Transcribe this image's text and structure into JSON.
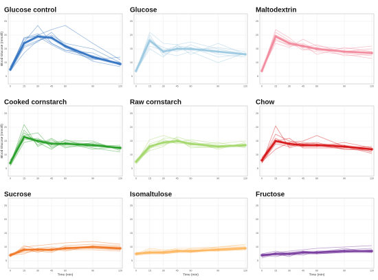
{
  "chart_data": [
    {
      "type": "line",
      "title": "Glucose control",
      "color": "#3575c2",
      "xlabel": "",
      "ylabel": "Blood Glucose (mmol/l)",
      "x": [
        0,
        15,
        30,
        45,
        60,
        90,
        120
      ],
      "xticks": [
        0,
        15,
        30,
        45,
        60,
        90,
        120
      ],
      "yticks": [
        5,
        10,
        15,
        20,
        25
      ],
      "ylim": [
        3,
        27
      ],
      "grid": true,
      "legend": "none",
      "series": [
        {
          "role": "mean",
          "values": [
            7.5,
            17.0,
            19.5,
            19.0,
            16.0,
            12.0,
            9.5
          ]
        },
        {
          "role": "individual",
          "values": [
            8.0,
            18.5,
            20.0,
            22.0,
            23.5,
            17.0,
            11.0
          ]
        },
        {
          "role": "individual",
          "values": [
            7.0,
            13.5,
            18.0,
            20.0,
            17.0,
            15.0,
            10.0
          ]
        },
        {
          "role": "individual",
          "values": [
            8.5,
            17.5,
            23.5,
            17.0,
            14.5,
            13.5,
            9.0
          ]
        },
        {
          "role": "individual",
          "values": [
            7.5,
            19.0,
            19.5,
            16.5,
            14.0,
            11.5,
            10.0
          ]
        },
        {
          "role": "individual",
          "values": [
            7.0,
            15.5,
            17.5,
            21.0,
            16.0,
            10.5,
            8.5
          ]
        },
        {
          "role": "individual",
          "values": [
            8.0,
            19.0,
            20.5,
            17.0,
            14.5,
            12.5,
            9.5
          ]
        },
        {
          "role": "individual",
          "values": [
            7.5,
            16.0,
            18.0,
            19.5,
            15.5,
            11.0,
            12.0
          ]
        }
      ]
    },
    {
      "type": "line",
      "title": "Glucose",
      "color": "#9ecae1",
      "xlabel": "",
      "ylabel": "",
      "x": [
        0,
        15,
        30,
        45,
        60,
        90,
        120
      ],
      "xticks": [
        0,
        15,
        30,
        45,
        60,
        90,
        120
      ],
      "yticks": [
        5,
        10,
        15,
        20,
        25
      ],
      "ylim": [
        3,
        27
      ],
      "grid": true,
      "legend": "none",
      "series": [
        {
          "role": "mean",
          "values": [
            7.0,
            18.0,
            14.0,
            15.0,
            15.0,
            14.0,
            13.0
          ]
        },
        {
          "role": "individual",
          "values": [
            6.5,
            21.0,
            17.0,
            16.5,
            17.5,
            15.0,
            13.0
          ]
        },
        {
          "role": "individual",
          "values": [
            7.5,
            19.0,
            13.5,
            12.5,
            14.0,
            10.0,
            13.5
          ]
        },
        {
          "role": "individual",
          "values": [
            7.0,
            15.0,
            12.0,
            16.5,
            13.0,
            17.0,
            13.0
          ]
        },
        {
          "role": "individual",
          "values": [
            7.5,
            17.5,
            15.5,
            14.0,
            16.5,
            13.0,
            12.0
          ]
        },
        {
          "role": "individual",
          "values": [
            6.5,
            20.0,
            12.5,
            15.5,
            14.5,
            15.5,
            14.0
          ]
        },
        {
          "role": "individual",
          "values": [
            7.0,
            16.0,
            14.5,
            16.0,
            15.5,
            12.0,
            13.0
          ]
        }
      ]
    },
    {
      "type": "line",
      "title": "Maltodextrin",
      "color": "#f28b9e",
      "xlabel": "",
      "ylabel": "",
      "x": [
        0,
        15,
        30,
        45,
        60,
        90,
        120
      ],
      "xticks": [
        0,
        15,
        30,
        45,
        60,
        90,
        120
      ],
      "yticks": [
        5,
        10,
        15,
        20,
        25
      ],
      "ylim": [
        3,
        27
      ],
      "grid": true,
      "legend": "none",
      "series": [
        {
          "role": "mean",
          "values": [
            7.0,
            19.5,
            17.0,
            16.0,
            15.0,
            14.0,
            13.5
          ]
        },
        {
          "role": "individual",
          "values": [
            6.5,
            22.0,
            19.0,
            15.0,
            14.0,
            13.0,
            11.5
          ]
        },
        {
          "role": "individual",
          "values": [
            7.5,
            17.0,
            15.5,
            18.5,
            16.0,
            15.0,
            16.0
          ]
        },
        {
          "role": "individual",
          "values": [
            7.0,
            20.0,
            17.5,
            14.5,
            15.5,
            12.5,
            13.0
          ]
        },
        {
          "role": "individual",
          "values": [
            7.5,
            18.5,
            16.0,
            16.5,
            13.0,
            15.5,
            14.0
          ]
        },
        {
          "role": "individual",
          "values": [
            6.5,
            21.0,
            18.0,
            15.5,
            16.5,
            13.5,
            12.5
          ]
        },
        {
          "role": "individual",
          "values": [
            7.0,
            18.0,
            16.5,
            17.0,
            14.5,
            14.0,
            15.0
          ]
        }
      ]
    },
    {
      "type": "line",
      "title": "Cooked cornstarch",
      "color": "#2ca02c",
      "xlabel": "",
      "ylabel": "Blood Glucose (mmol/l)",
      "x": [
        0,
        15,
        30,
        45,
        60,
        90,
        120
      ],
      "xticks": [
        0,
        15,
        30,
        45,
        60,
        90,
        120
      ],
      "yticks": [
        5,
        10,
        15,
        20,
        25
      ],
      "ylim": [
        3,
        27
      ],
      "grid": true,
      "legend": "none",
      "series": [
        {
          "role": "mean",
          "values": [
            7.0,
            16.5,
            15.0,
            14.0,
            14.0,
            13.5,
            12.5
          ]
        },
        {
          "role": "individual",
          "values": [
            6.5,
            21.0,
            13.0,
            15.5,
            12.5,
            14.5,
            12.0
          ]
        },
        {
          "role": "individual",
          "values": [
            7.5,
            17.0,
            18.0,
            12.5,
            14.5,
            12.0,
            13.0
          ]
        },
        {
          "role": "individual",
          "values": [
            6.0,
            14.5,
            15.5,
            14.5,
            15.0,
            15.0,
            11.5
          ]
        },
        {
          "role": "individual",
          "values": [
            7.0,
            19.0,
            13.5,
            16.0,
            13.0,
            13.0,
            13.5
          ]
        },
        {
          "role": "individual",
          "values": [
            8.0,
            15.5,
            16.0,
            13.0,
            14.5,
            14.0,
            12.5
          ]
        },
        {
          "role": "individual",
          "values": [
            7.5,
            18.0,
            14.5,
            12.0,
            15.5,
            12.5,
            11.0
          ]
        }
      ]
    },
    {
      "type": "line",
      "title": "Raw cornstarch",
      "color": "#a5d86e",
      "xlabel": "",
      "ylabel": "",
      "x": [
        0,
        15,
        30,
        45,
        60,
        90,
        120
      ],
      "xticks": [
        0,
        15,
        30,
        45,
        60,
        90,
        120
      ],
      "yticks": [
        5,
        10,
        15,
        20,
        25
      ],
      "ylim": [
        3,
        27
      ],
      "grid": true,
      "legend": "none",
      "series": [
        {
          "role": "mean",
          "values": [
            7.5,
            13.0,
            14.5,
            15.0,
            14.0,
            13.0,
            13.5
          ]
        },
        {
          "role": "individual",
          "values": [
            7.0,
            15.5,
            17.0,
            15.5,
            13.5,
            14.5,
            12.5
          ]
        },
        {
          "role": "individual",
          "values": [
            8.0,
            11.5,
            13.0,
            16.5,
            15.0,
            12.0,
            14.5
          ]
        },
        {
          "role": "individual",
          "values": [
            7.5,
            14.0,
            15.5,
            14.0,
            14.5,
            13.5,
            13.0
          ]
        },
        {
          "role": "individual",
          "values": [
            6.5,
            12.5,
            13.5,
            15.5,
            13.0,
            12.5,
            14.0
          ]
        },
        {
          "role": "individual",
          "values": [
            8.0,
            13.5,
            14.0,
            14.5,
            15.5,
            14.0,
            15.0
          ]
        },
        {
          "role": "individual",
          "values": [
            7.0,
            12.0,
            16.0,
            16.0,
            12.5,
            13.0,
            13.0
          ]
        }
      ]
    },
    {
      "type": "line",
      "title": "Chow",
      "color": "#d7191c",
      "xlabel": "",
      "ylabel": "",
      "x": [
        0,
        15,
        30,
        45,
        60,
        90,
        120
      ],
      "xticks": [
        0,
        15,
        30,
        45,
        60,
        90,
        120
      ],
      "yticks": [
        5,
        10,
        15,
        20,
        25
      ],
      "ylim": [
        3,
        27
      ],
      "grid": true,
      "legend": "none",
      "series": [
        {
          "role": "mean",
          "values": [
            8.0,
            15.0,
            14.0,
            13.5,
            13.5,
            13.0,
            12.0
          ]
        },
        {
          "role": "individual",
          "values": [
            7.0,
            20.5,
            12.5,
            14.0,
            14.5,
            12.0,
            11.5
          ]
        },
        {
          "role": "individual",
          "values": [
            8.5,
            16.0,
            13.5,
            13.0,
            13.0,
            14.5,
            12.5
          ]
        },
        {
          "role": "individual",
          "values": [
            7.5,
            12.0,
            14.5,
            15.0,
            17.0,
            13.0,
            10.5
          ]
        },
        {
          "role": "individual",
          "values": [
            9.0,
            15.0,
            16.0,
            12.5,
            12.5,
            12.5,
            13.0
          ]
        },
        {
          "role": "individual",
          "values": [
            8.0,
            17.5,
            15.0,
            14.0,
            13.5,
            12.0,
            12.0
          ]
        },
        {
          "role": "individual",
          "values": [
            7.0,
            14.0,
            13.0,
            14.5,
            14.0,
            13.5,
            11.0
          ]
        }
      ]
    },
    {
      "type": "line",
      "title": "Sucrose",
      "color": "#f07a2a",
      "xlabel": "Time (min)",
      "ylabel": "",
      "x": [
        0,
        15,
        30,
        45,
        60,
        90,
        120
      ],
      "xticks": [
        0,
        15,
        30,
        45,
        60,
        90,
        120
      ],
      "yticks": [
        5,
        10,
        15,
        20,
        25
      ],
      "ylim": [
        3,
        27
      ],
      "grid": true,
      "legend": "none",
      "series": [
        {
          "role": "mean",
          "values": [
            7.0,
            9.0,
            9.0,
            9.0,
            9.5,
            10.0,
            9.5
          ]
        },
        {
          "role": "individual",
          "values": [
            6.5,
            10.0,
            10.5,
            11.0,
            11.5,
            12.0,
            11.0
          ]
        },
        {
          "role": "individual",
          "values": [
            7.5,
            8.0,
            8.5,
            8.0,
            10.0,
            9.5,
            9.0
          ]
        },
        {
          "role": "individual",
          "values": [
            7.0,
            9.5,
            8.0,
            9.5,
            8.5,
            10.5,
            10.0
          ]
        },
        {
          "role": "individual",
          "values": [
            7.5,
            8.5,
            9.5,
            10.0,
            9.0,
            9.0,
            8.5
          ]
        },
        {
          "role": "individual",
          "values": [
            6.5,
            10.5,
            9.0,
            8.5,
            10.5,
            11.0,
            10.5
          ]
        },
        {
          "role": "individual",
          "values": [
            7.0,
            7.5,
            9.5,
            9.0,
            9.5,
            10.0,
            9.0
          ]
        }
      ]
    },
    {
      "type": "line",
      "title": "Isomaltulose",
      "color": "#fdb863",
      "xlabel": "Time (min)",
      "ylabel": "",
      "x": [
        0,
        15,
        30,
        45,
        60,
        90,
        120
      ],
      "xticks": [
        0,
        15,
        30,
        45,
        60,
        90,
        120
      ],
      "yticks": [
        5,
        10,
        15,
        20,
        25
      ],
      "ylim": [
        3,
        27
      ],
      "grid": true,
      "legend": "none",
      "series": [
        {
          "role": "mean",
          "values": [
            7.5,
            8.0,
            8.0,
            8.5,
            8.5,
            9.0,
            9.5
          ]
        },
        {
          "role": "individual",
          "values": [
            7.0,
            9.0,
            8.5,
            9.5,
            9.5,
            10.0,
            10.5
          ]
        },
        {
          "role": "individual",
          "values": [
            8.0,
            7.5,
            7.5,
            8.0,
            8.0,
            9.5,
            10.0
          ]
        },
        {
          "role": "individual",
          "values": [
            7.5,
            8.5,
            8.5,
            8.5,
            9.0,
            8.5,
            9.0
          ]
        },
        {
          "role": "individual",
          "values": [
            7.0,
            7.5,
            8.0,
            9.0,
            8.0,
            9.0,
            9.5
          ]
        },
        {
          "role": "individual",
          "values": [
            8.0,
            8.0,
            7.5,
            8.0,
            9.5,
            9.5,
            10.0
          ]
        },
        {
          "role": "individual",
          "values": [
            7.5,
            9.5,
            9.0,
            9.0,
            8.5,
            10.0,
            11.0
          ]
        }
      ]
    },
    {
      "type": "line",
      "title": "Fructose",
      "color": "#7b3fa0",
      "xlabel": "Time (min)",
      "ylabel": "",
      "x": [
        0,
        15,
        30,
        45,
        60,
        90,
        120
      ],
      "xticks": [
        0,
        15,
        30,
        45,
        60,
        90,
        120
      ],
      "yticks": [
        5,
        10,
        15,
        20,
        25
      ],
      "ylim": [
        3,
        27
      ],
      "grid": true,
      "legend": "none",
      "series": [
        {
          "role": "mean",
          "values": [
            7.0,
            7.5,
            7.5,
            8.0,
            8.0,
            8.5,
            8.5
          ]
        },
        {
          "role": "individual",
          "values": [
            6.5,
            8.0,
            8.5,
            9.0,
            9.5,
            10.0,
            10.5
          ]
        },
        {
          "role": "individual",
          "values": [
            7.5,
            7.0,
            7.0,
            7.5,
            7.5,
            8.0,
            8.0
          ]
        },
        {
          "role": "individual",
          "values": [
            6.0,
            7.5,
            8.0,
            8.5,
            8.0,
            9.0,
            9.5
          ]
        },
        {
          "role": "individual",
          "values": [
            7.0,
            6.5,
            7.5,
            7.0,
            8.5,
            8.5,
            8.5
          ]
        },
        {
          "role": "individual",
          "values": [
            7.5,
            8.5,
            7.5,
            8.0,
            7.5,
            8.0,
            9.0
          ]
        },
        {
          "role": "individual",
          "values": [
            6.5,
            7.5,
            6.5,
            8.5,
            8.0,
            9.5,
            8.0
          ]
        }
      ]
    }
  ]
}
